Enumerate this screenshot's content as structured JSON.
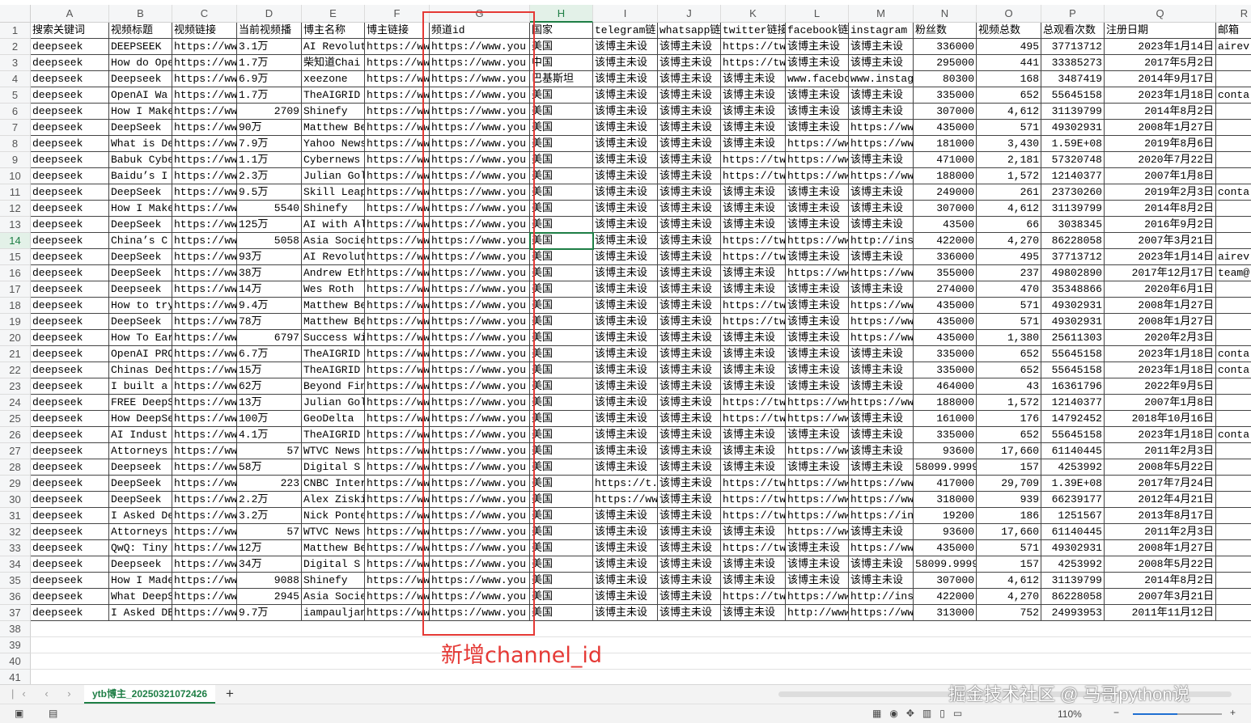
{
  "columns": [
    "A",
    "B",
    "C",
    "D",
    "E",
    "F",
    "G",
    "H",
    "I",
    "J",
    "K",
    "L",
    "M",
    "N",
    "O",
    "P",
    "Q",
    "R"
  ],
  "row_numbers": [
    1,
    2,
    3,
    4,
    5,
    6,
    7,
    8,
    9,
    10,
    11,
    12,
    13,
    14,
    15,
    16,
    17,
    18,
    19,
    20,
    21,
    22,
    23,
    24,
    25,
    26,
    27,
    28,
    29,
    30,
    31,
    32,
    33,
    34,
    35,
    36,
    37,
    38,
    39,
    40,
    41
  ],
  "table": {
    "header": [
      "搜索关键词",
      "视频标题",
      "视频链接",
      "当前视频播",
      "博主名称",
      "博主链接",
      "频道id",
      "国家",
      "telegram链",
      "whatsapp链",
      "twitter链接",
      "facebook链",
      "instagram",
      "粉丝数",
      "视频总数",
      "总观看次数",
      "注册日期",
      "邮箱"
    ],
    "rows": [
      [
        "deepseek",
        "DEEPSEEK",
        "https://www",
        "3.1万",
        "AI Revolut",
        "https://www",
        "https://www.you",
        "美国",
        "该博主未设",
        "该博主未设",
        "https://tw",
        "该博主未设",
        "该博主未设",
        "336000",
        "495",
        "37713712",
        "2023年1月14日",
        "airev"
      ],
      [
        "deepseek",
        "How do Ope",
        "https://www",
        "1.7万",
        "柴知道Chai",
        "https://www",
        "https://www.you",
        "中国",
        "该博主未设",
        "该博主未设",
        "https://tw",
        "该博主未设",
        "该博主未设",
        "295000",
        "441",
        "33385273",
        "2017年5月2日"
      ],
      [
        "deepseek",
        "Deepseek",
        "https://www",
        "6.9万",
        "xeezone",
        "https://www",
        "https://www.you",
        "巴基斯坦",
        "该博主未设",
        "该博主未设",
        "该博主未设",
        "www.facebo",
        "www.instag",
        "80300",
        "168",
        "3487419",
        "2014年9月17日"
      ],
      [
        "deepseek",
        "OpenAI Wa",
        "https://www",
        "1.7万",
        "TheAIGRID",
        "https://www",
        "https://www.you",
        "美国",
        "该博主未设",
        "该博主未设",
        "该博主未设",
        "该博主未设",
        "该博主未设",
        "335000",
        "652",
        "55645158",
        "2023年1月18日",
        "conta"
      ],
      [
        "deepseek",
        "How I Make",
        "https://www",
        "2709",
        "Shinefy",
        "https://www",
        "https://www.you",
        "美国",
        "该博主未设",
        "该博主未设",
        "该博主未设",
        "该博主未设",
        "该博主未设",
        "307000",
        "4,612",
        "31139799",
        "2014年8月2日"
      ],
      [
        "deepseek",
        "DeepSeek",
        "https://www",
        "90万",
        "Matthew Be",
        "https://www",
        "https://www.you",
        "美国",
        "该博主未设",
        "该博主未设",
        "该博主未设",
        "该博主未设",
        "https://ww",
        "435000",
        "571",
        "49302931",
        "2008年1月27日"
      ],
      [
        "deepseek",
        "What is De",
        "https://www",
        "7.9万",
        "Yahoo News",
        "https://www",
        "https://www.you",
        "美国",
        "该博主未设",
        "该博主未设",
        "该博主未设",
        "https://ww",
        "https://ww",
        "181000",
        "3,430",
        "1.59E+08",
        "2019年8月6日"
      ],
      [
        "deepseek",
        "Babuk Cybe",
        "https://www",
        "1.1万",
        "Cybernews",
        "https://www",
        "https://www.you",
        "美国",
        "该博主未设",
        "该博主未设",
        "https://tw",
        "https://ww",
        "该博主未设",
        "471000",
        "2,181",
        "57320748",
        "2020年7月22日"
      ],
      [
        "deepseek",
        "Baidu’s I",
        "https://www",
        "2.3万",
        "Julian Gol",
        "https://www",
        "https://www.you",
        "美国",
        "该博主未设",
        "该博主未设",
        "https://tw",
        "https://ww",
        "https://ww",
        "188000",
        "1,572",
        "12140377",
        "2007年1月8日"
      ],
      [
        "deepseek",
        "DeepSeek",
        "https://www",
        "9.5万",
        "Skill Leap",
        "https://www",
        "https://www.you",
        "美国",
        "该博主未设",
        "该博主未设",
        "该博主未设",
        "该博主未设",
        "该博主未设",
        "249000",
        "261",
        "23730260",
        "2019年2月3日",
        "conta"
      ],
      [
        "deepseek",
        "How I Make",
        "https://www",
        "5540",
        "Shinefy",
        "https://www",
        "https://www.you",
        "美国",
        "该博主未设",
        "该博主未设",
        "该博主未设",
        "该博主未设",
        "该博主未设",
        "307000",
        "4,612",
        "31139799",
        "2014年8月2日"
      ],
      [
        "deepseek",
        "DeepSeek",
        "https://www",
        "125万",
        "AI with Al",
        "https://www",
        "https://www.you",
        "美国",
        "该博主未设",
        "该博主未设",
        "该博主未设",
        "该博主未设",
        "该博主未设",
        "43500",
        "66",
        "3038345",
        "2016年9月2日"
      ],
      [
        "deepseek",
        "China’s C",
        "https://www",
        "5058",
        "Asia Socie",
        "https://www",
        "https://www.you",
        "美国",
        "该博主未设",
        "该博主未设",
        "https://tw",
        "https://ww",
        "http://ins",
        "422000",
        "4,270",
        "86228058",
        "2007年3月21日"
      ],
      [
        "deepseek",
        "DeepSeek",
        "https://www",
        "93万",
        "AI Revolut",
        "https://www",
        "https://www.you",
        "美国",
        "该博主未设",
        "该博主未设",
        "https://tw",
        "该博主未设",
        "该博主未设",
        "336000",
        "495",
        "37713712",
        "2023年1月14日",
        "airev"
      ],
      [
        "deepseek",
        "DeepSeek",
        "https://www",
        "38万",
        "Andrew Eth",
        "https://www",
        "https://www.you",
        "美国",
        "该博主未设",
        "该博主未设",
        "该博主未设",
        "https://ww",
        "https://ww",
        "355000",
        "237",
        "49802890",
        "2017年12月17日",
        "team@"
      ],
      [
        "deepseek",
        "Deepseek",
        "https://www",
        "14万",
        "Wes Roth",
        "https://www",
        "https://www.you",
        "美国",
        "该博主未设",
        "该博主未设",
        "该博主未设",
        "该博主未设",
        "该博主未设",
        "274000",
        "470",
        "35348866",
        "2020年6月1日"
      ],
      [
        "deepseek",
        "How to try",
        "https://www",
        "9.4万",
        "Matthew Be",
        "https://www",
        "https://www.you",
        "美国",
        "该博主未设",
        "该博主未设",
        "https://tw",
        "该博主未设",
        "https://ww",
        "435000",
        "571",
        "49302931",
        "2008年1月27日"
      ],
      [
        "deepseek",
        "DeepSeek",
        "https://www",
        "78万",
        "Matthew Be",
        "https://www",
        "https://www.you",
        "美国",
        "该博主未设",
        "该博主未设",
        "https://tw",
        "该博主未设",
        "https://ww",
        "435000",
        "571",
        "49302931",
        "2008年1月27日"
      ],
      [
        "deepseek",
        "How To Ear",
        "https://www",
        "6797",
        "Success Wi",
        "https://www",
        "https://www.you",
        "美国",
        "该博主未设",
        "该博主未设",
        "该博主未设",
        "该博主未设",
        "https://ww",
        "435000",
        "1,380",
        "25611303",
        "2020年2月3日"
      ],
      [
        "deepseek",
        "OpenAI PRO",
        "https://www",
        "6.7万",
        "TheAIGRID",
        "https://www",
        "https://www.you",
        "美国",
        "该博主未设",
        "该博主未设",
        "该博主未设",
        "该博主未设",
        "该博主未设",
        "335000",
        "652",
        "55645158",
        "2023年1月18日",
        "conta"
      ],
      [
        "deepseek",
        "Chinas Dee",
        "https://www",
        "15万",
        "TheAIGRID",
        "https://www",
        "https://www.you",
        "美国",
        "该博主未设",
        "该博主未设",
        "该博主未设",
        "该博主未设",
        "该博主未设",
        "335000",
        "652",
        "55645158",
        "2023年1月18日",
        "conta"
      ],
      [
        "deepseek",
        "I built a",
        "https://www",
        "62万",
        "Beyond Fin",
        "https://www",
        "https://www.you",
        "美国",
        "该博主未设",
        "该博主未设",
        "该博主未设",
        "该博主未设",
        "该博主未设",
        "464000",
        "43",
        "16361796",
        "2022年9月5日"
      ],
      [
        "deepseek",
        "FREE DeepS",
        "https://www",
        "13万",
        "Julian Gol",
        "https://www",
        "https://www.you",
        "美国",
        "该博主未设",
        "该博主未设",
        "https://tw",
        "https://ww",
        "https://ww",
        "188000",
        "1,572",
        "12140377",
        "2007年1月8日"
      ],
      [
        "deepseek",
        "How DeepSe",
        "https://www",
        "100万",
        "GeoDelta",
        "https://www",
        "https://www.you",
        "美国",
        "该博主未设",
        "该博主未设",
        "https://tw",
        "https://ww",
        "该博主未设",
        "161000",
        "176",
        "14792452",
        "2018年10月16日"
      ],
      [
        "deepseek",
        "AI Indust",
        "https://www",
        "4.1万",
        "TheAIGRID",
        "https://www",
        "https://www.you",
        "美国",
        "该博主未设",
        "该博主未设",
        "该博主未设",
        "该博主未设",
        "该博主未设",
        "335000",
        "652",
        "55645158",
        "2023年1月18日",
        "conta"
      ],
      [
        "deepseek",
        "Attorneys",
        "https://www",
        "57",
        "WTVC News",
        "https://www",
        "https://www.you",
        "美国",
        "该博主未设",
        "该博主未设",
        "该博主未设",
        "https://ww",
        "该博主未设",
        "93600",
        "17,660",
        "61140445",
        "2011年2月3日"
      ],
      [
        "deepseek",
        "Deepseek",
        "https://www",
        "58万",
        "Digital S",
        "https://www",
        "https://www.you",
        "美国",
        "该博主未设",
        "该博主未设",
        "该博主未设",
        "该博主未设",
        "该博主未设",
        "58099.9999",
        "157",
        "4253992",
        "2008年5月22日"
      ],
      [
        "deepseek",
        "DeepSeek",
        "https://www",
        "223",
        "CNBC Inter",
        "https://www",
        "https://www.you",
        "美国",
        "https://t.",
        "该博主未设",
        "https://tw",
        "https://ww",
        "https://ww",
        "417000",
        "29,709",
        "1.39E+08",
        "2017年7月24日"
      ],
      [
        "deepseek",
        "DeepSeek",
        "https://www",
        "2.2万",
        "Alex Ziski",
        "https://www",
        "https://www.you",
        "美国",
        "https://ww",
        "该博主未设",
        "https://tw",
        "https://ww",
        "https://ww",
        "318000",
        "939",
        "66239177",
        "2012年4月21日"
      ],
      [
        "deepseek",
        "I Asked De",
        "https://www",
        "3.2万",
        "Nick Ponte",
        "https://www",
        "https://www.you",
        "美国",
        "该博主未设",
        "该博主未设",
        "https://tw",
        "https://ww",
        "https://in",
        "19200",
        "186",
        "1251567",
        "2013年8月17日"
      ],
      [
        "deepseek",
        "Attorneys",
        "https://www",
        "57",
        "WTVC News",
        "https://www",
        "https://www.you",
        "美国",
        "该博主未设",
        "该博主未设",
        "该博主未设",
        "https://ww",
        "该博主未设",
        "93600",
        "17,660",
        "61140445",
        "2011年2月3日"
      ],
      [
        "deepseek",
        "QwQ: Tiny",
        "https://www",
        "12万",
        "Matthew Be",
        "https://www",
        "https://www.you",
        "美国",
        "该博主未设",
        "该博主未设",
        "https://tw",
        "该博主未设",
        "https://ww",
        "435000",
        "571",
        "49302931",
        "2008年1月27日"
      ],
      [
        "deepseek",
        "Deepseek",
        "https://www",
        "34万",
        "Digital S",
        "https://www",
        "https://www.you",
        "美国",
        "该博主未设",
        "该博主未设",
        "该博主未设",
        "该博主未设",
        "该博主未设",
        "58099.9999",
        "157",
        "4253992",
        "2008年5月22日"
      ],
      [
        "deepseek",
        "How I Made",
        "https://www",
        "9088",
        "Shinefy",
        "https://www",
        "https://www.you",
        "美国",
        "该博主未设",
        "该博主未设",
        "该博主未设",
        "该博主未设",
        "该博主未设",
        "307000",
        "4,612",
        "31139799",
        "2014年8月2日"
      ],
      [
        "deepseek",
        "What DeepS",
        "https://www",
        "2945",
        "Asia Socie",
        "https://www",
        "https://www.you",
        "美国",
        "该博主未设",
        "该博主未设",
        "https://tw",
        "https://ww",
        "http://ins",
        "422000",
        "4,270",
        "86228058",
        "2007年3月21日"
      ],
      [
        "deepseek",
        "I Asked DE",
        "https://www",
        "9.7万",
        "iampauljan",
        "https://www",
        "https://www.you",
        "美国",
        "该博主未设",
        "该博主未设",
        "该博主未设",
        "http://www",
        "https://ww",
        "313000",
        "752",
        "24993953",
        "2011年11月12日"
      ]
    ]
  },
  "annotation": "新增channel_id",
  "sheet_tab": "ytb博主_20250321072426",
  "zoom": "110%",
  "watermark": "掘金技术社区 @ 马哥python说"
}
